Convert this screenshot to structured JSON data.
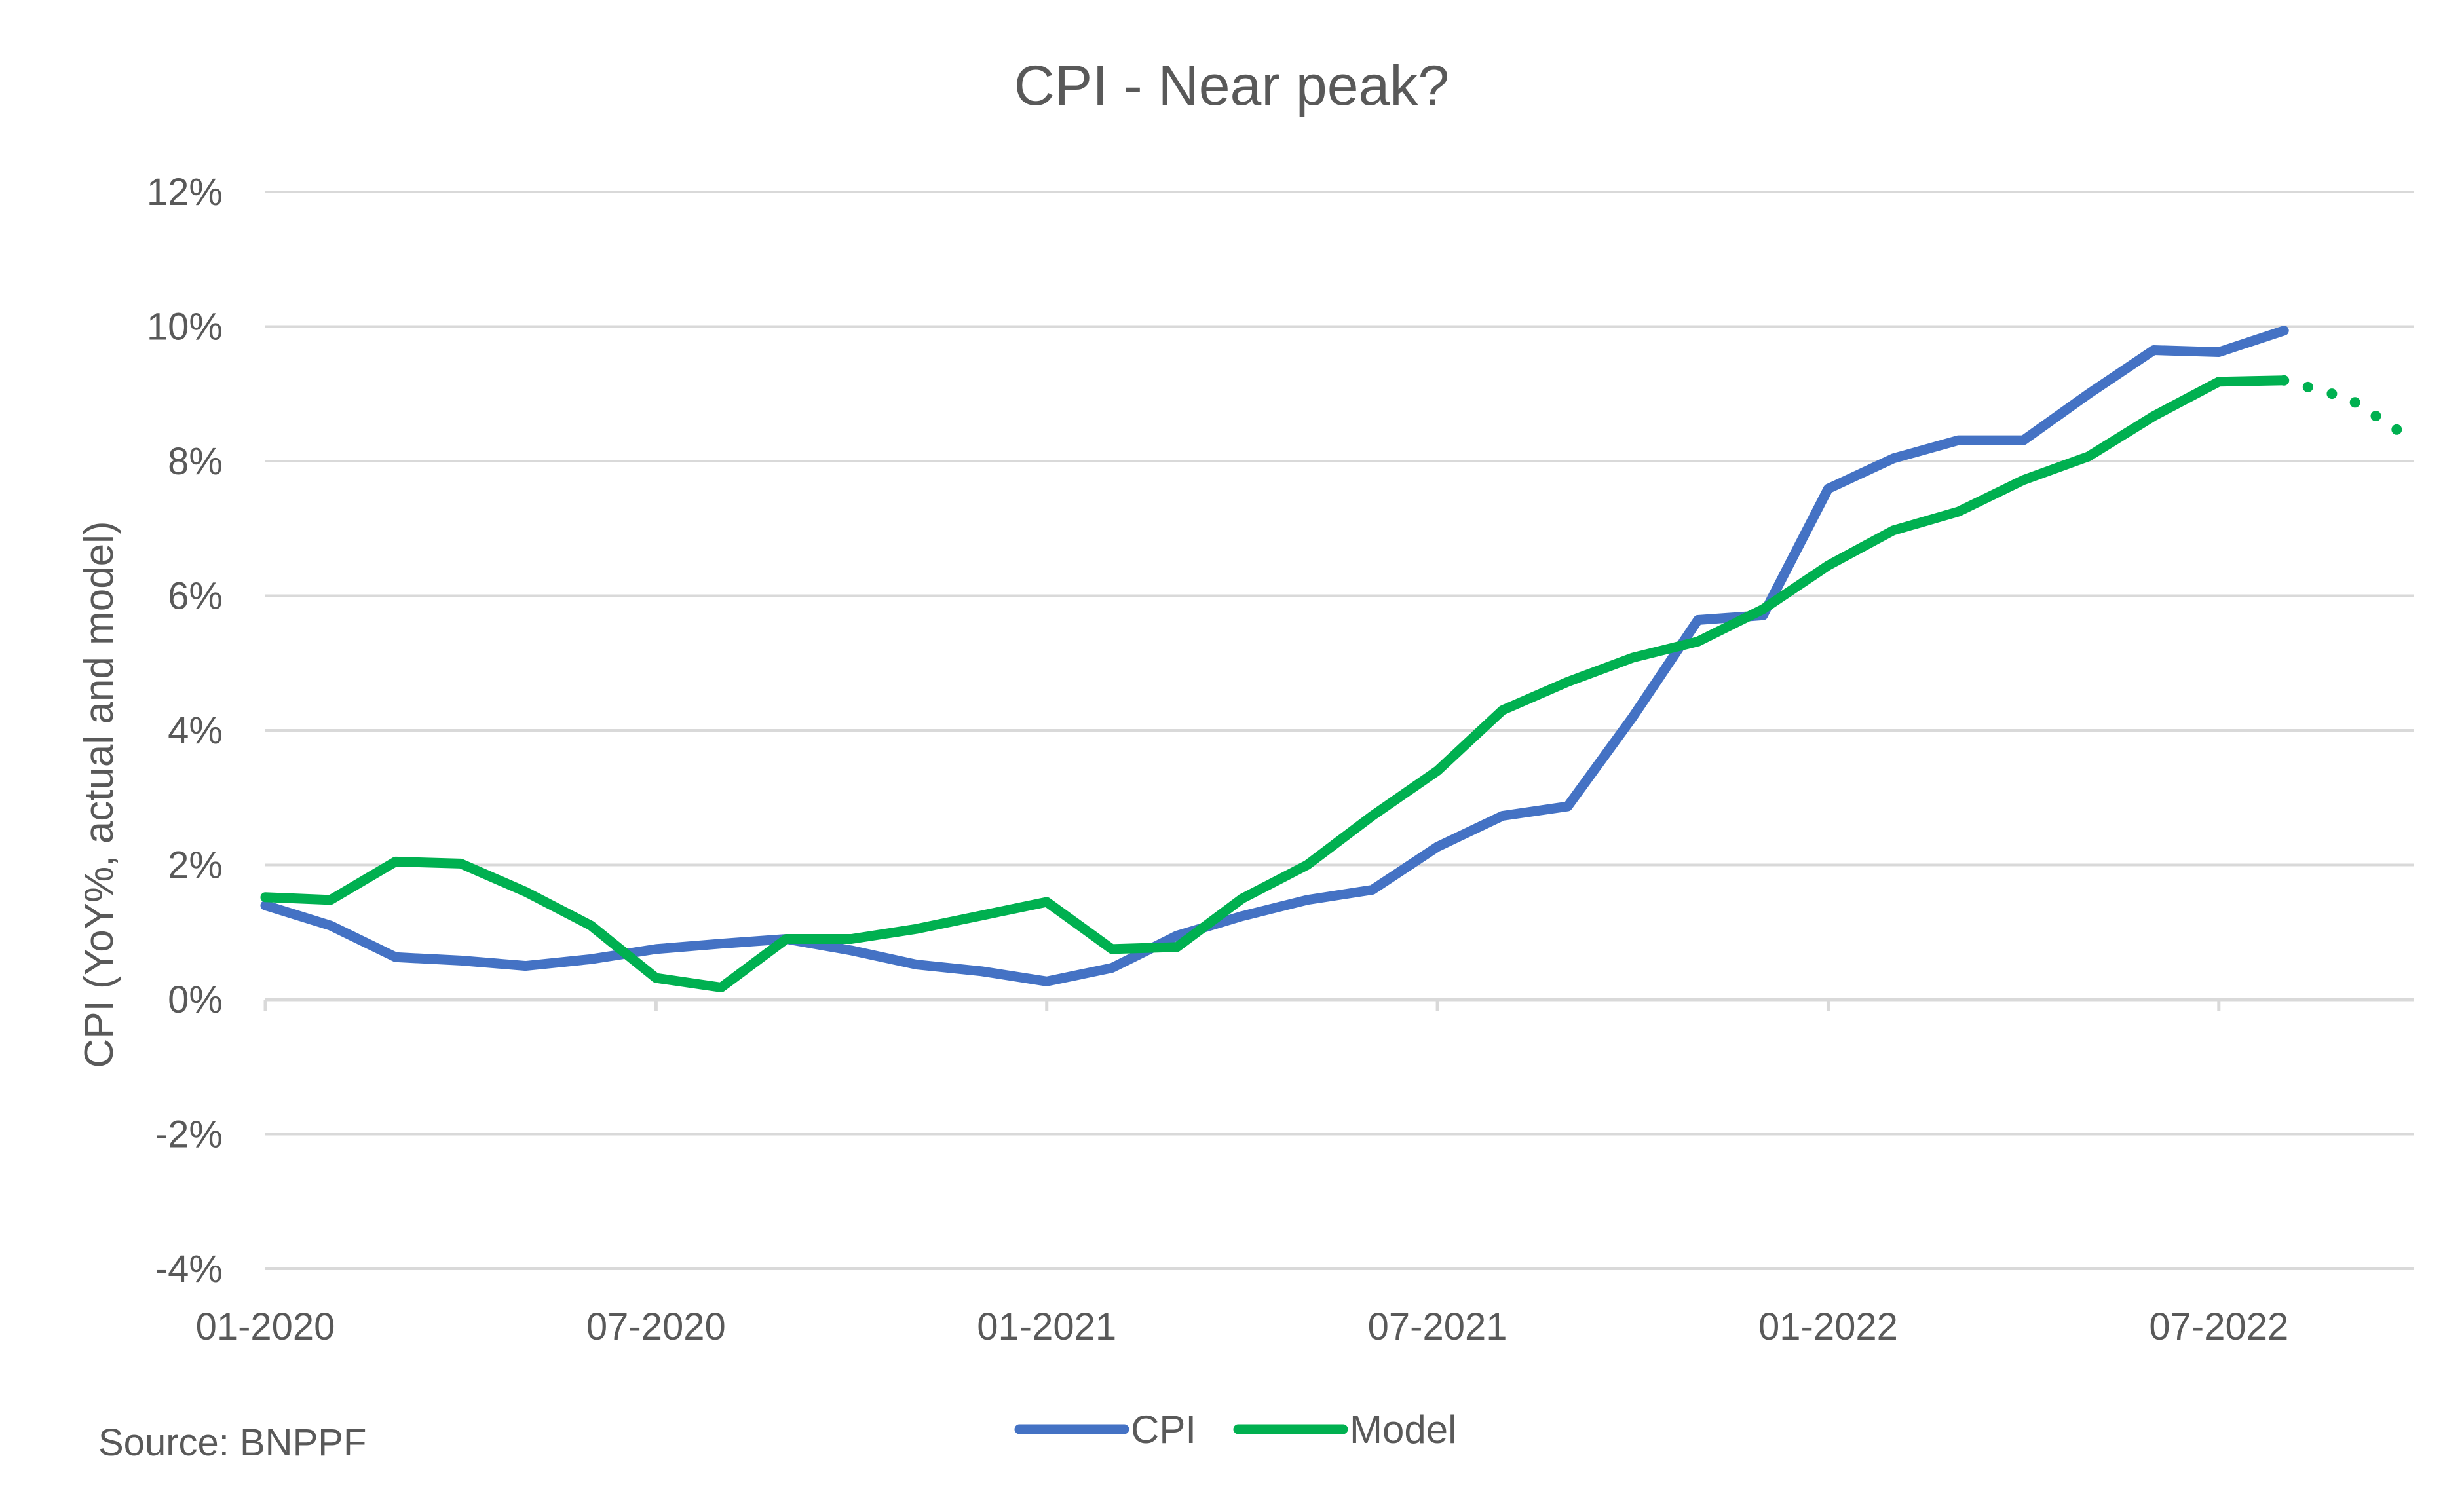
{
  "chart_data": {
    "type": "line",
    "title": "CPI - Near peak?",
    "ylabel": "CPI (YoY%,  actual and model)",
    "xlabel": "",
    "source": "Source: BNPPF",
    "ylim": [
      -4,
      12
    ],
    "y_ticks": [
      12,
      10,
      8,
      6,
      4,
      2,
      0,
      -2,
      -4
    ],
    "y_tick_labels": [
      "12%",
      "10%",
      "8%",
      "6%",
      "4%",
      "2%",
      "0%",
      "-2%",
      "-4%"
    ],
    "x_tick_labels": [
      "01-2020",
      "07-2020",
      "01-2021",
      "07-2021",
      "01-2022",
      "07-2022"
    ],
    "x_tick_months": [
      0,
      6,
      12,
      18,
      24,
      30
    ],
    "x_range_months": [
      0,
      33
    ],
    "grid": "horizontal",
    "legend_position": "bottom",
    "colors": {
      "cpi": "#4472C4",
      "model": "#00B050",
      "grid": "#D9D9D9",
      "text": "#595959"
    },
    "series": [
      {
        "name": "CPI",
        "color": "#4472C4",
        "style": "solid",
        "x_months": [
          0,
          1,
          2,
          3,
          4,
          5,
          6,
          7,
          8,
          9,
          10,
          11,
          12,
          13,
          14,
          15,
          16,
          17,
          18,
          19,
          20,
          21,
          22,
          23,
          24,
          25,
          26,
          27,
          28,
          29,
          30,
          31
        ],
        "values": [
          1.4,
          1.1,
          0.63,
          0.58,
          0.5,
          0.6,
          0.75,
          0.83,
          0.9,
          0.73,
          0.52,
          0.42,
          0.27,
          0.47,
          0.95,
          1.24,
          1.48,
          1.63,
          2.27,
          2.73,
          2.87,
          4.2,
          5.64,
          5.71,
          7.59,
          8.04,
          8.31,
          8.31,
          9.0,
          9.65,
          9.62,
          9.94
        ]
      },
      {
        "name": "Model",
        "color": "#00B050",
        "style": "solid",
        "x_months": [
          0,
          1,
          2,
          3,
          4,
          5,
          6,
          7,
          8,
          9,
          10,
          11,
          12,
          13,
          14,
          15,
          16,
          17,
          18,
          19,
          20,
          21,
          22,
          23,
          24,
          25,
          26,
          27,
          28,
          29,
          30,
          31
        ],
        "values": [
          1.52,
          1.48,
          2.05,
          2.02,
          1.6,
          1.1,
          0.32,
          0.18,
          0.9,
          0.9,
          1.05,
          1.25,
          1.45,
          0.75,
          0.78,
          1.5,
          2.0,
          2.73,
          3.4,
          4.3,
          4.72,
          5.08,
          5.32,
          5.8,
          6.45,
          6.97,
          7.25,
          7.72,
          8.07,
          8.67,
          9.18,
          9.2
        ]
      },
      {
        "name": "Model",
        "color": "#00B050",
        "style": "dotted",
        "x_months": [
          31,
          32,
          33
        ],
        "values": [
          9.2,
          8.93,
          8.3
        ]
      }
    ]
  }
}
